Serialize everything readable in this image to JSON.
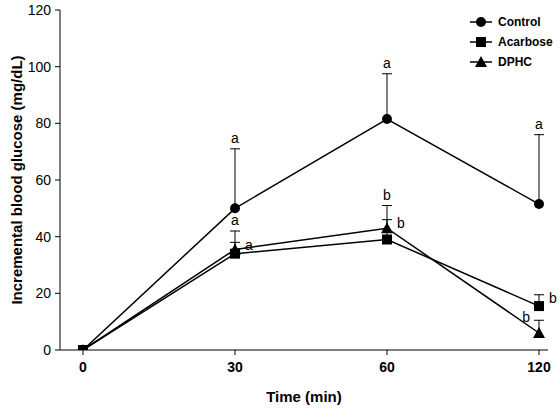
{
  "chart_data": {
    "type": "line",
    "x_label": "Time (min)",
    "y_label": "Incremental  blood glucose (mg/dL)",
    "categories": [
      "0",
      "30",
      "60",
      "120"
    ],
    "ylim": [
      0,
      120
    ],
    "yticks": [
      0,
      20,
      40,
      60,
      80,
      100,
      120
    ],
    "legend": "upper right",
    "grid": false,
    "series": [
      {
        "name": "Control",
        "color": "#000000",
        "marker": "circle",
        "line_style": "solid",
        "values": [
          0,
          50,
          81.5,
          51.5
        ],
        "errors": [
          0,
          21,
          16,
          24.5
        ],
        "significance": [
          null,
          "a",
          "a",
          "a"
        ]
      },
      {
        "name": "Acarbose",
        "color": "#000000",
        "marker": "square",
        "line_style": "solid",
        "values": [
          0,
          34,
          39,
          15.5
        ],
        "errors": [
          0,
          4,
          7,
          4
        ],
        "significance": [
          null,
          "a",
          "b",
          "b"
        ]
      },
      {
        "name": "DPHC",
        "color": "#000000",
        "marker": "triangle",
        "line_style": "solid",
        "values": [
          0,
          35.5,
          43,
          6
        ],
        "errors": [
          0,
          6.5,
          8,
          4.5
        ],
        "significance": [
          null,
          "a",
          "b",
          "b"
        ]
      }
    ]
  }
}
